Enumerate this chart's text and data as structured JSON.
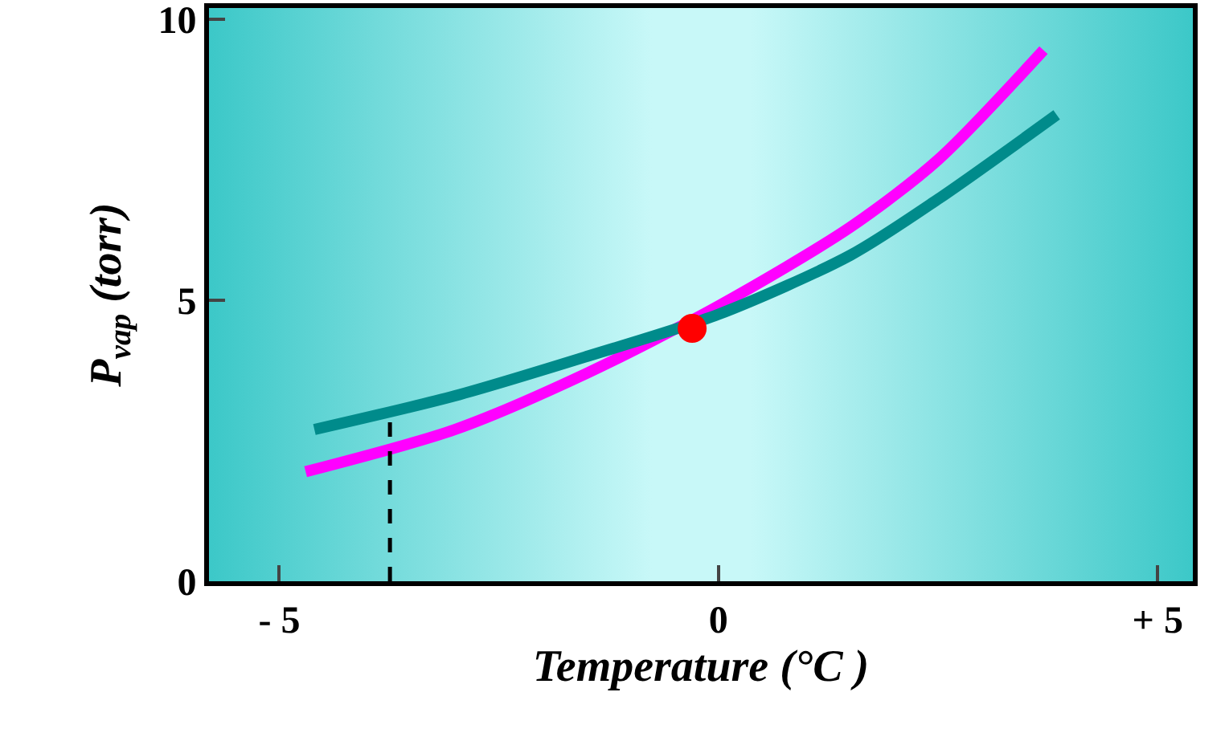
{
  "chart_data": {
    "type": "line",
    "xlabel": "Temperature (°C )",
    "ylabel": "P$_{vap}$ (torr)",
    "xlim": [
      -5.8,
      5.4
    ],
    "xticks": [
      {
        "value": -5,
        "label": "- 5"
      },
      0,
      {
        "value": 5,
        "label": "+ 5"
      }
    ],
    "ylim": [
      0,
      10.2
    ],
    "yticks": [
      0,
      5,
      10
    ],
    "grid": false,
    "marker": "none",
    "line_style": "solid",
    "series": [
      {
        "color": "#ff00ff",
        "x": [
          -4.7,
          -3,
          -1.5,
          0,
          1.5,
          2.5,
          3.7
        ],
        "values": [
          1.95,
          2.7,
          3.7,
          4.9,
          6.3,
          7.5,
          9.45
        ]
      },
      {
        "color": "#008b8b",
        "x": [
          -4.6,
          -3,
          -1.5,
          0,
          1.5,
          2.5,
          3.85
        ],
        "values": [
          2.7,
          3.3,
          4.0,
          4.75,
          5.8,
          6.8,
          8.3
        ]
      },
      {
        "type": "scatter",
        "color": "#ff0000",
        "marker": "circle",
        "x": [
          -0.3
        ],
        "values": [
          4.5
        ]
      }
    ],
    "ref_lines": [
      {
        "axis": "x",
        "value": -3.74,
        "line_style": "dashed",
        "color": "#000000"
      }
    ]
  }
}
